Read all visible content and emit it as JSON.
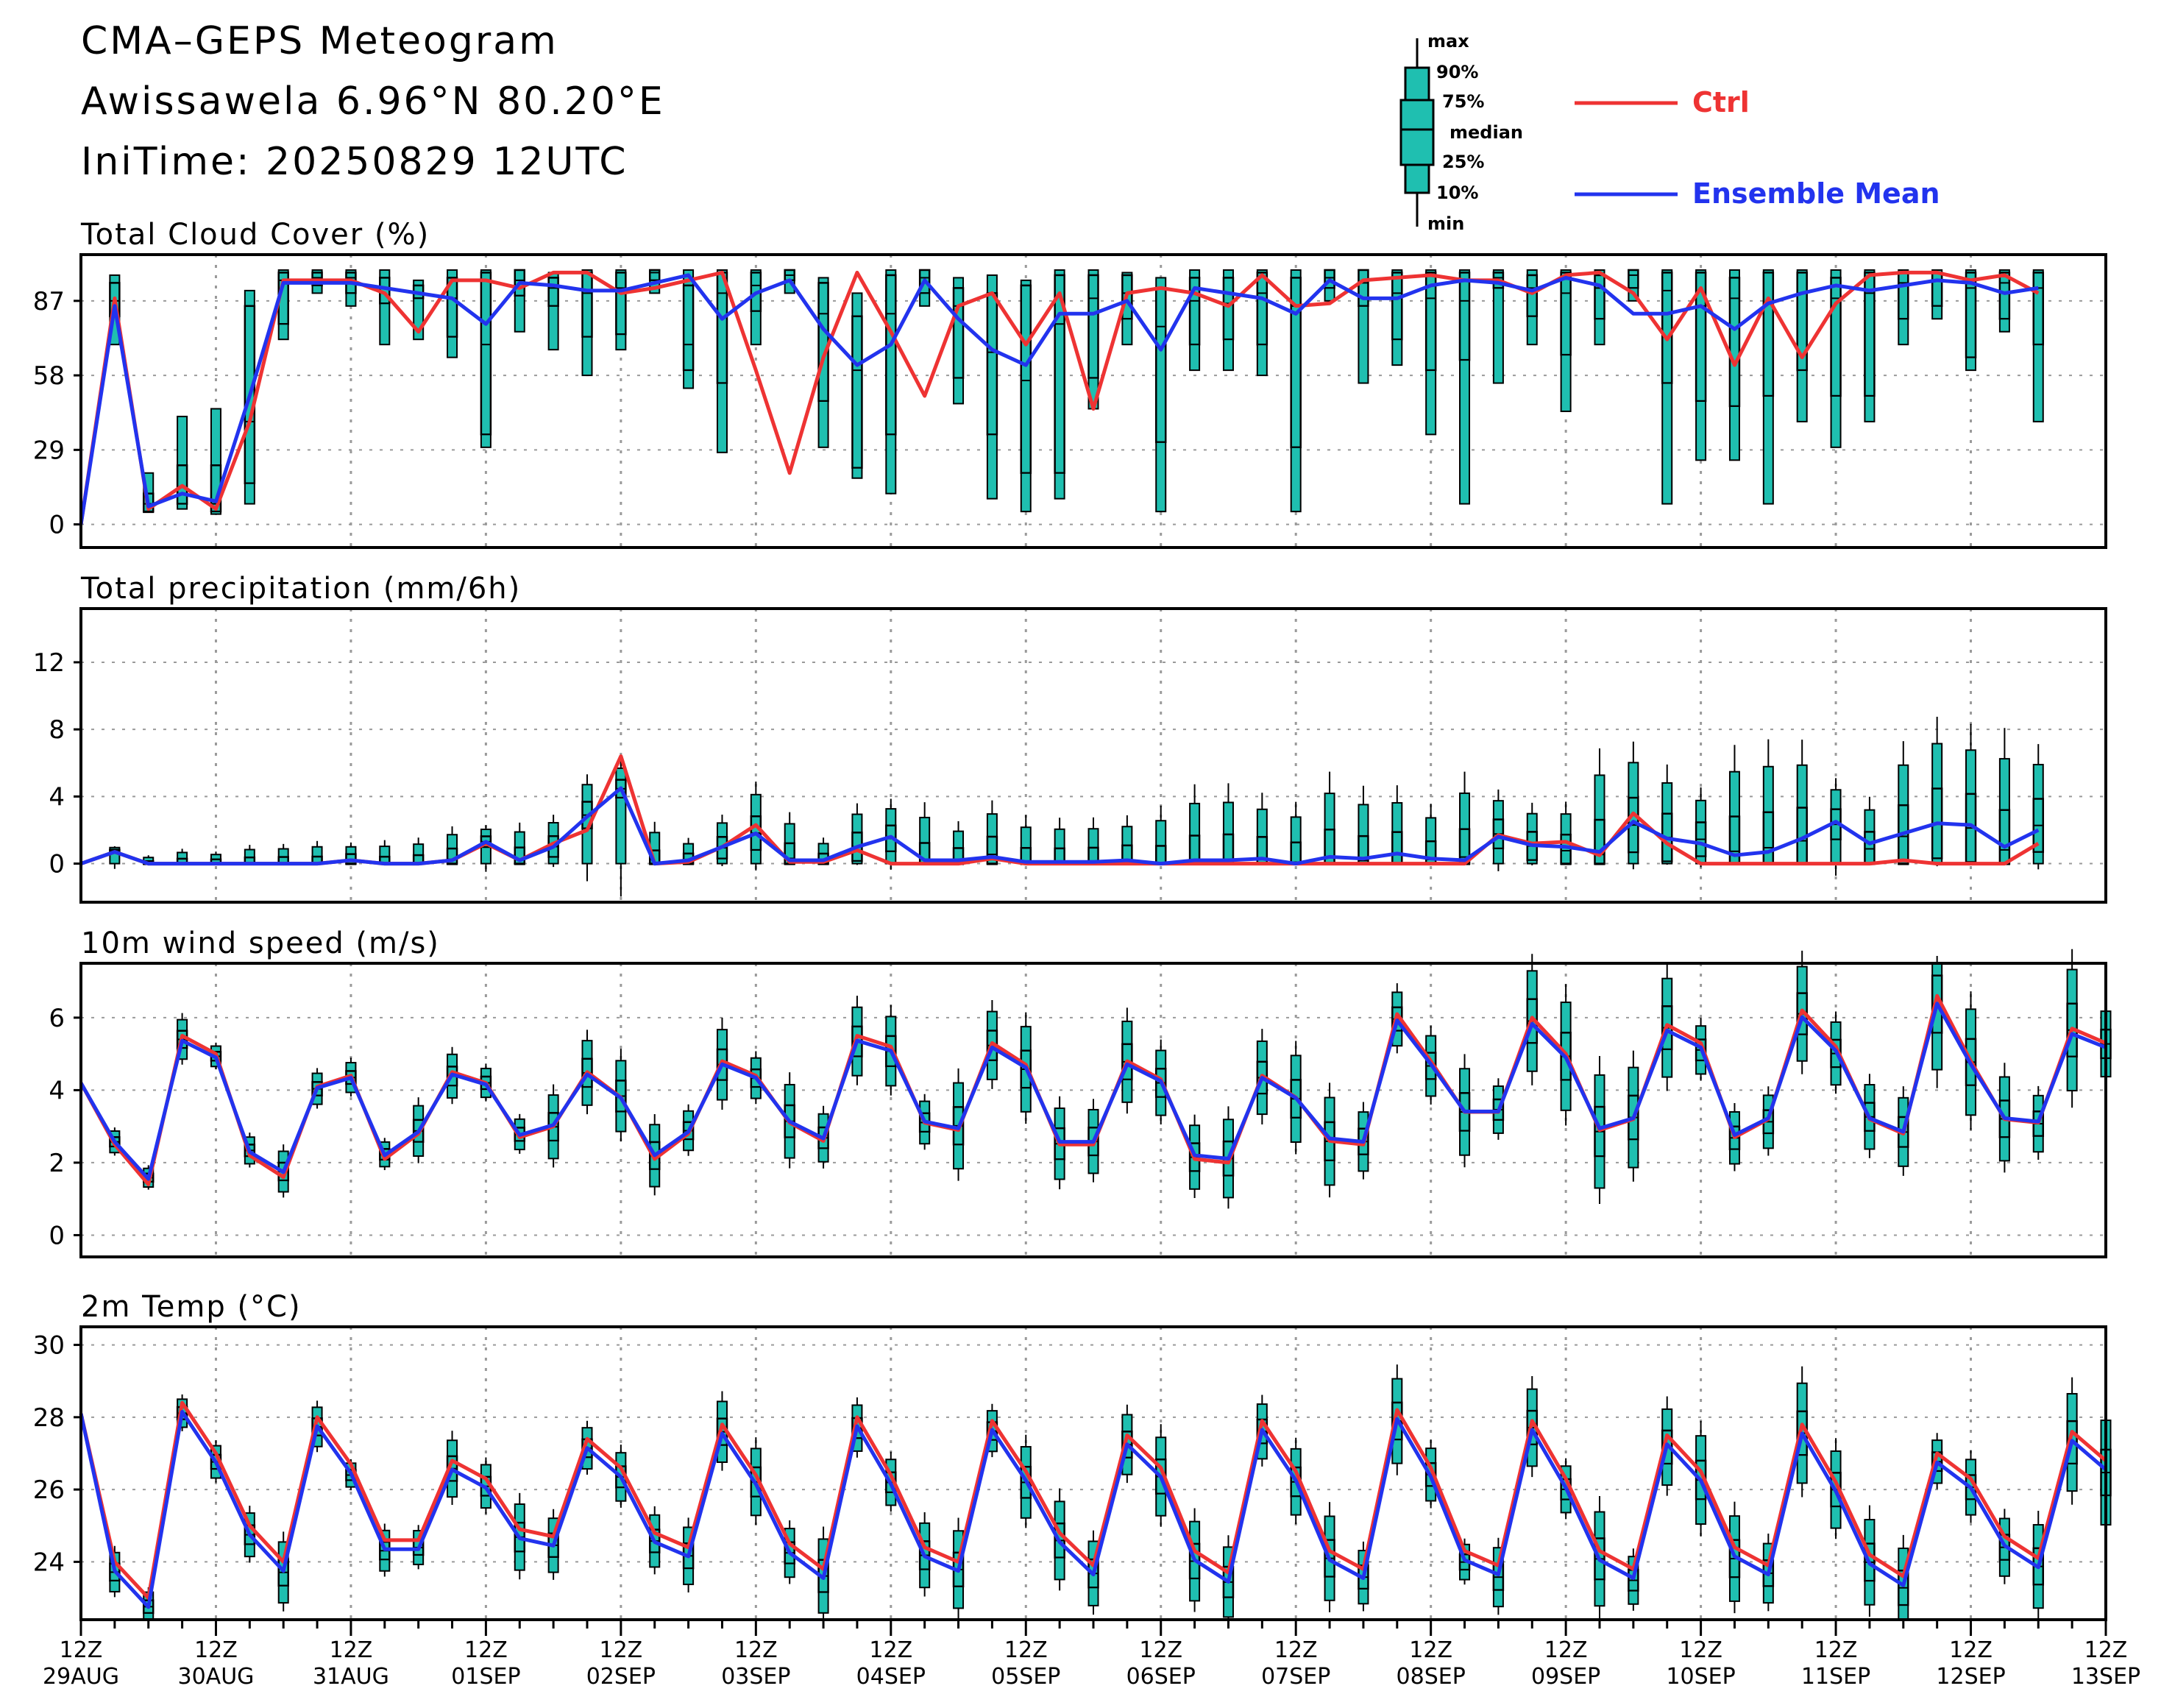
{
  "header": {
    "title": "CMA–GEPS Meteogram",
    "location": "Awissawela 6.96°N 80.20°E",
    "init_time": "IniTime: 20250829 12UTC"
  },
  "legend": {
    "box_labels": [
      "max",
      "90%",
      "75%",
      "median",
      "25%",
      "10%",
      "min"
    ],
    "ctrl_label": "Ctrl",
    "mean_label": "Ensemble Mean"
  },
  "colors": {
    "ctrl": "#ee3333",
    "mean": "#2233ee",
    "box": "#1fbfb0",
    "grid": "#9a9a9a"
  },
  "chart_data": [
    {
      "type": "box+line",
      "title": "Total Cloud Cover (%)",
      "ylim": [
        -9,
        105
      ],
      "yticks": [
        0,
        29,
        58,
        87
      ],
      "ctrl": [
        0,
        88,
        6,
        15,
        6,
        40,
        95,
        95,
        95,
        90,
        75,
        95,
        95,
        92,
        98,
        98,
        90,
        92,
        95,
        98,
        60,
        20,
        65,
        98,
        75,
        50,
        85,
        90,
        70,
        90,
        45,
        90,
        92,
        90,
        85,
        97,
        85,
        86,
        95,
        96,
        97,
        95,
        95,
        90,
        97,
        98,
        90,
        72,
        92,
        62,
        88,
        65,
        86,
        97,
        98,
        98,
        95,
        97,
        90
      ],
      "mean": [
        0,
        85,
        7,
        12,
        9,
        50,
        94,
        94,
        94,
        92,
        90,
        88,
        78,
        94,
        93,
        91,
        91,
        94,
        97,
        80,
        90,
        95,
        76,
        62,
        70,
        95,
        80,
        68,
        62,
        82,
        82,
        87,
        68,
        92,
        90,
        88,
        82,
        95,
        88,
        88,
        93,
        95,
        94,
        91,
        96,
        93,
        82,
        82,
        85,
        76,
        86,
        90,
        93,
        91,
        93,
        95,
        94,
        90,
        92
      ],
      "boxes": [
        [
          null,
          null,
          null,
          null,
          null
        ],
        [
          70,
          81,
          87,
          94,
          97
        ],
        [
          5,
          5,
          8,
          12,
          20
        ],
        [
          6,
          8,
          12,
          23,
          42
        ],
        [
          4,
          5,
          8,
          23,
          45
        ],
        [
          8,
          16,
          40,
          85,
          91
        ],
        [
          72,
          78,
          95,
          98,
          99
        ],
        [
          90,
          93,
          96,
          98,
          99
        ],
        [
          85,
          90,
          96,
          98,
          99
        ],
        [
          70,
          86,
          92,
          96,
          99
        ],
        [
          72,
          88,
          90,
          93,
          95
        ],
        [
          65,
          73,
          88,
          96,
          99
        ],
        [
          30,
          35,
          70,
          98,
          99
        ],
        [
          75,
          89,
          95,
          99,
          99
        ],
        [
          68,
          85,
          92,
          96,
          98
        ],
        [
          58,
          73,
          90,
          98,
          99
        ],
        [
          68,
          74,
          92,
          98,
          99
        ],
        [
          90,
          95,
          98,
          99,
          99
        ],
        [
          53,
          60,
          70,
          93,
          99
        ],
        [
          28,
          55,
          90,
          98,
          99
        ],
        [
          70,
          83,
          93,
          98,
          99
        ],
        [
          90,
          95,
          97,
          99,
          99
        ],
        [
          30,
          48,
          82,
          94,
          96
        ],
        [
          18,
          22,
          60,
          81,
          90
        ],
        [
          12,
          35,
          82,
          97,
          99
        ],
        [
          85,
          90,
          96,
          99,
          99
        ],
        [
          47,
          57,
          85,
          92,
          96
        ],
        [
          10,
          35,
          67,
          90,
          97
        ],
        [
          5,
          20,
          56,
          93,
          95
        ],
        [
          10,
          20,
          78,
          97,
          99
        ],
        [
          45,
          57,
          88,
          97,
          99
        ],
        [
          70,
          80,
          90,
          97,
          98
        ],
        [
          5,
          32,
          77,
          92,
          96
        ],
        [
          60,
          70,
          87,
          96,
          99
        ],
        [
          60,
          72,
          86,
          96,
          99
        ],
        [
          58,
          70,
          90,
          98,
          99
        ],
        [
          5,
          30,
          85,
          96,
          99
        ],
        [
          87,
          92,
          96,
          99,
          99
        ],
        [
          55,
          85,
          94,
          99,
          99
        ],
        [
          62,
          72,
          90,
          98,
          99
        ],
        [
          35,
          60,
          88,
          98,
          99
        ],
        [
          8,
          64,
          87,
          98,
          99
        ],
        [
          55,
          92,
          96,
          98,
          99
        ],
        [
          70,
          81,
          92,
          97,
          99
        ],
        [
          44,
          66,
          90,
          98,
          99
        ],
        [
          70,
          80,
          92,
          97,
          99
        ],
        [
          87,
          92,
          97,
          99,
          99
        ],
        [
          8,
          55,
          91,
          98,
          99
        ],
        [
          25,
          48,
          85,
          98,
          99
        ],
        [
          25,
          46,
          88,
          96,
          99
        ],
        [
          8,
          50,
          86,
          98,
          99
        ],
        [
          40,
          60,
          90,
          98,
          99
        ],
        [
          30,
          50,
          88,
          96,
          99
        ],
        [
          40,
          50,
          90,
          98,
          99
        ],
        [
          70,
          80,
          94,
          98,
          99
        ],
        [
          80,
          85,
          95,
          98,
          99
        ],
        [
          60,
          65,
          92,
          98,
          99
        ],
        [
          75,
          80,
          94,
          98,
          99
        ],
        [
          40,
          70,
          92,
          98,
          99
        ]
      ]
    },
    {
      "type": "box+line",
      "title": "Total precipitation (mm/6h)",
      "ylim": [
        -2.3,
        15.2
      ],
      "yticks": [
        0,
        4,
        8,
        12
      ],
      "ctrl": [
        0,
        0.7,
        0,
        0,
        0,
        0,
        0,
        0,
        0.2,
        0,
        0,
        0.2,
        1.2,
        0.2,
        1.2,
        2,
        6.4,
        0,
        0.1,
        1,
        2.3,
        0.1,
        0.1,
        0.8,
        0,
        0,
        0,
        0.3,
        0,
        0,
        0,
        0,
        0,
        0,
        0,
        0,
        0,
        0,
        0,
        0,
        0,
        0,
        1.7,
        1.2,
        1.3,
        0.5,
        3,
        1.2,
        0,
        0,
        0,
        0,
        0,
        0,
        0.2,
        0,
        0,
        0,
        1.2
      ],
      "mean": [
        0,
        0.7,
        0,
        0,
        0,
        0,
        0,
        0,
        0.2,
        0,
        0,
        0.2,
        1.3,
        0.2,
        1,
        2.8,
        4.5,
        0,
        0.2,
        1,
        1.8,
        0.2,
        0.2,
        1,
        1.6,
        0.2,
        0.2,
        0.4,
        0.1,
        0.1,
        0.1,
        0.2,
        0,
        0.2,
        0.2,
        0.3,
        0,
        0.4,
        0.3,
        0.6,
        0.3,
        0.2,
        1.6,
        1.1,
        1,
        0.7,
        2.5,
        1.5,
        1.2,
        0.5,
        0.7,
        1.5,
        2.5,
        1.2,
        1.8,
        2.4,
        2.3,
        1,
        2
      ]
    },
    {
      "type": "box+line",
      "title": "10m wind speed (m/s)",
      "ylim": [
        -0.6,
        7.5
      ],
      "yticks": [
        0,
        2,
        4,
        6
      ],
      "ctrl": [
        4.2,
        2.5,
        1.4,
        5.5,
        5,
        2.2,
        1.6,
        4.1,
        4.4,
        2.1,
        2.8,
        4.5,
        4.2,
        2.7,
        3,
        4.5,
        3.8,
        2.1,
        2.8,
        4.8,
        4.4,
        3.1,
        2.6,
        5.5,
        5.2,
        3.1,
        2.9,
        5.3,
        4.7,
        2.5,
        2.5,
        4.8,
        4.3,
        2.1,
        2,
        4.4,
        3.8,
        2.6,
        2.5,
        6.1,
        4.8,
        3.4,
        3.4,
        6,
        5,
        2.9,
        3.2,
        5.8,
        5.3,
        2.7,
        3.2,
        6.2,
        5.2,
        3.2,
        2.8,
        6.6,
        4.8,
        3.2,
        3.1,
        5.7,
        5.3
      ]
    },
    {
      "type": "box+line",
      "title": "2m Temp (°C)",
      "ylim": [
        22.4,
        30.5
      ],
      "yticks": [
        24,
        26,
        28,
        30
      ]
    }
  ],
  "x_axis": {
    "ticks": [
      {
        "hour": "12Z",
        "date": "29AUG"
      },
      {
        "hour": "12Z",
        "date": "30AUG"
      },
      {
        "hour": "12Z",
        "date": "31AUG"
      },
      {
        "hour": "12Z",
        "date": "01SEP"
      },
      {
        "hour": "12Z",
        "date": "02SEP"
      },
      {
        "hour": "12Z",
        "date": "03SEP"
      },
      {
        "hour": "12Z",
        "date": "04SEP"
      },
      {
        "hour": "12Z",
        "date": "05SEP"
      },
      {
        "hour": "12Z",
        "date": "06SEP"
      },
      {
        "hour": "12Z",
        "date": "07SEP"
      },
      {
        "hour": "12Z",
        "date": "08SEP"
      },
      {
        "hour": "12Z",
        "date": "09SEP"
      },
      {
        "hour": "12Z",
        "date": "10SEP"
      },
      {
        "hour": "12Z",
        "date": "11SEP"
      },
      {
        "hour": "12Z",
        "date": "12SEP"
      },
      {
        "hour": "12Z",
        "date": "13SEP"
      }
    ]
  }
}
